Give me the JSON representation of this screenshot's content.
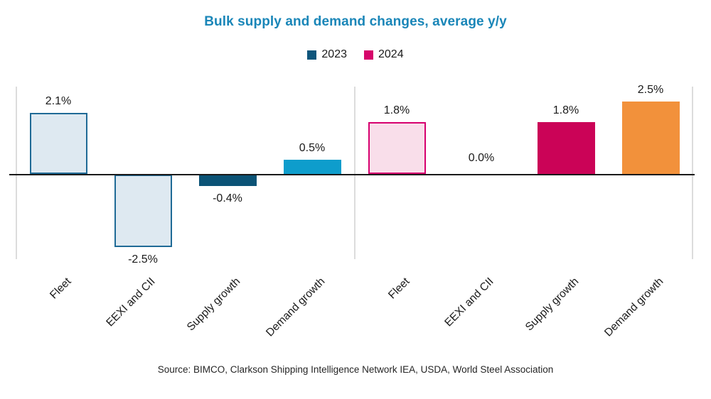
{
  "chart_data": {
    "type": "bar",
    "title": "Bulk supply and demand changes, average y/y",
    "categories": [
      "Fleet",
      "EEXI and CII",
      "Supply growth",
      "Demand growth"
    ],
    "series": [
      {
        "name": "2023",
        "legend_color": "#0F567C",
        "values": [
          2.1,
          -2.5,
          -0.4,
          0.5
        ],
        "labels": [
          "2.1%",
          "-2.5%",
          "-0.4%",
          "0.5%"
        ],
        "fills": [
          "#DEE9F1",
          "#DEE9F1",
          "#0B5376",
          "#0E9DCC"
        ],
        "borders": [
          "#1F6A96",
          "#1F6A96",
          null,
          null
        ]
      },
      {
        "name": "2024",
        "legend_color": "#D6066B",
        "values": [
          1.8,
          0.0,
          1.8,
          2.5
        ],
        "labels": [
          "1.8%",
          "0.0%",
          "1.8%",
          "2.5%"
        ],
        "fills": [
          "#F9DEEA",
          null,
          "#CB0357",
          "#F2913B"
        ],
        "borders": [
          "#D6006E",
          null,
          null,
          null
        ]
      }
    ],
    "ylim": [
      -3,
      3
    ],
    "xlabel": "",
    "ylabel": "",
    "grid": "vertical-panel-dividers-only",
    "legend_position": "top-center",
    "category_label_rotation_deg": -45,
    "colors": {
      "title": "#1A86B8",
      "grid": "#DCDCDC",
      "axis": "#1A1A1A"
    },
    "source": "Source: BIMCO, Clarkson Shipping Intelligence Network IEA, USDA, World Steel Association"
  }
}
